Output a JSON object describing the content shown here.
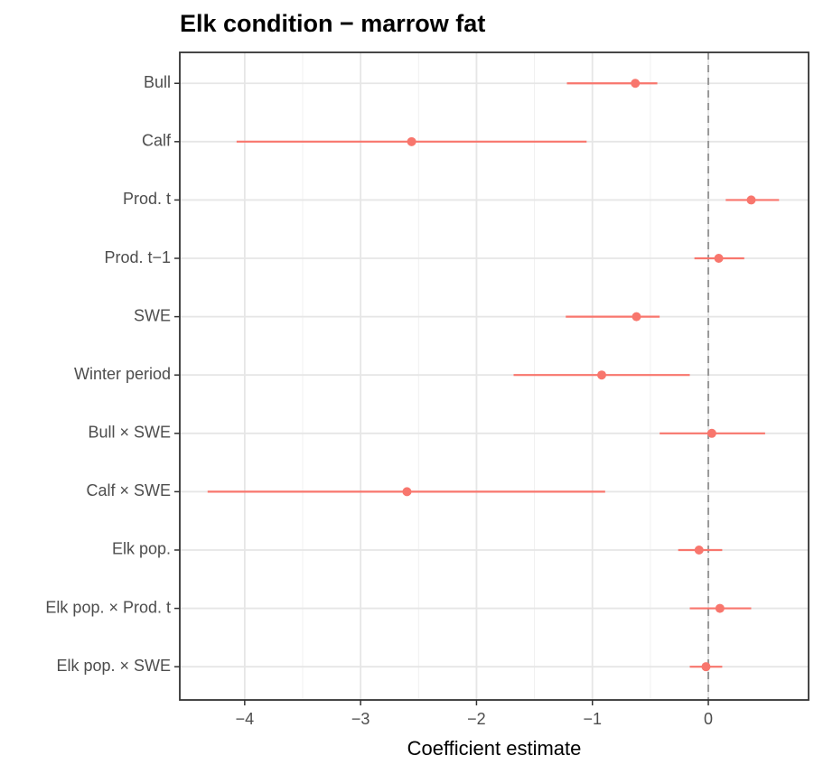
{
  "chart_data": {
    "type": "coefplot",
    "title": "Elk condition − marrow fat",
    "x_label": "Coefficient estimate",
    "categories": [
      "Bull",
      "Calf",
      "Prod. t",
      "Prod. t−1",
      "SWE",
      "Winter period",
      "Bull × SWE",
      "Calf × SWE",
      "Elk pop.",
      "Elk pop. × Prod. t",
      "Elk pop. × SWE"
    ],
    "values": [
      -0.63,
      -2.56,
      0.37,
      0.09,
      -0.62,
      -0.92,
      0.03,
      -2.6,
      -0.08,
      0.1,
      -0.02
    ],
    "lower": [
      -1.22,
      -4.07,
      0.15,
      -0.12,
      -1.23,
      -1.68,
      -0.42,
      -4.32,
      -0.26,
      -0.16,
      -0.16
    ],
    "upper": [
      -0.44,
      -1.05,
      0.61,
      0.31,
      -0.42,
      -0.16,
      0.49,
      -0.89,
      0.12,
      0.37,
      0.12
    ],
    "color": "#f8766d",
    "xlim": [
      -4.56,
      0.865
    ],
    "xticks": [
      {
        "value": -4,
        "label": "−4"
      },
      {
        "value": -3,
        "label": "−3"
      },
      {
        "value": -2,
        "label": "−2"
      },
      {
        "value": -1,
        "label": "−1"
      },
      0
    ],
    "reference_line": 0,
    "grid": true,
    "minor_grid": true
  }
}
